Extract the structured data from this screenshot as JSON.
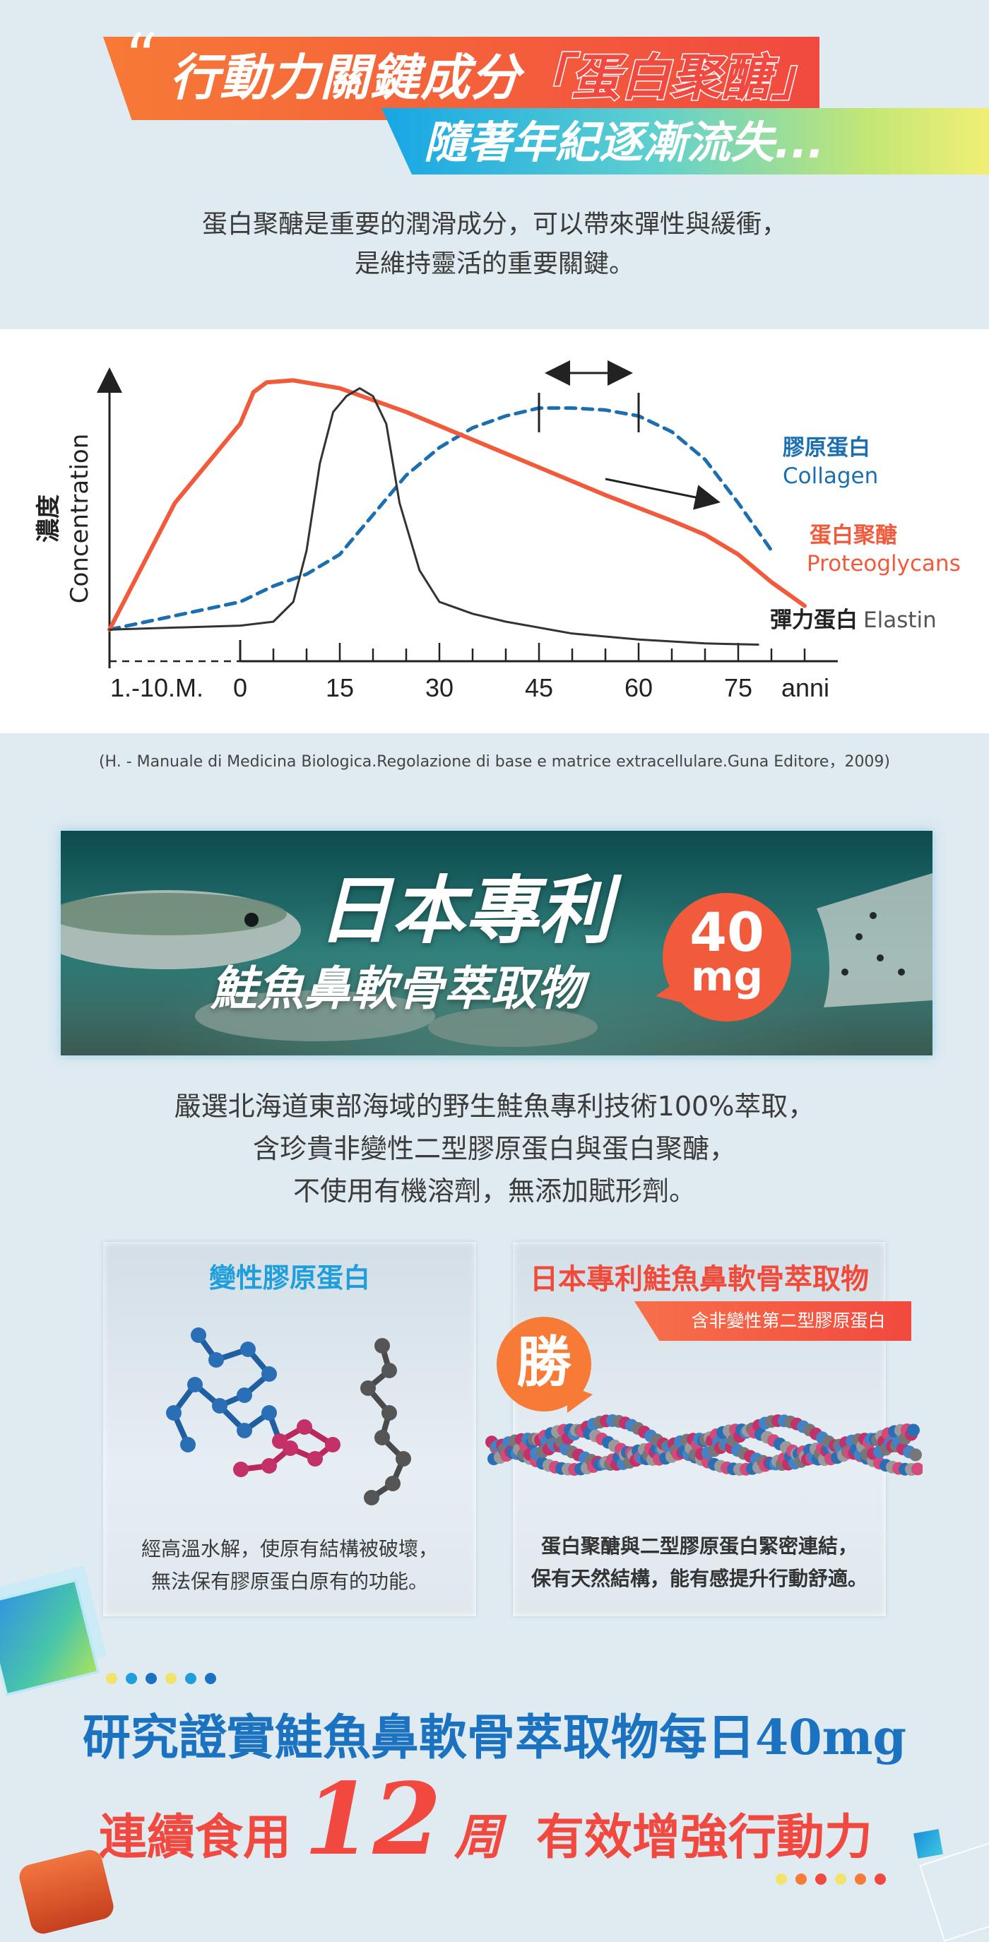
{
  "headline": {
    "line1_prefix": "行動力關鍵成分",
    "line1_highlight": "「蛋白聚醣」",
    "line2": "隨著年紀逐漸流失...",
    "intro_line1": "蛋白聚醣是重要的潤滑成分，可以帶來彈性與緩衝，",
    "intro_line2": "是維持靈活的重要關鍵。"
  },
  "chart_data": {
    "type": "line",
    "ylabel_zh": "濃度",
    "ylabel_en": "Concentration",
    "x_tick_labels": [
      "1.-10.M.",
      "0",
      "15",
      "30",
      "45",
      "60",
      "75",
      "anni"
    ],
    "series": [
      {
        "name": "膠原蛋白 Collagen",
        "label_zh": "膠原蛋白",
        "label_en": "Collagen",
        "color": "#1b6fb0",
        "style": "dashed",
        "x": [
          -2,
          0,
          5,
          10,
          15,
          20,
          25,
          30,
          35,
          40,
          45,
          50,
          55,
          60,
          65,
          70,
          75,
          80
        ],
        "y": [
          8,
          15,
          19,
          22,
          27,
          37,
          47,
          54,
          59,
          62,
          64,
          64,
          63.5,
          62,
          58,
          51,
          40,
          28
        ]
      },
      {
        "name": "蛋白聚醣 Proteoglycans",
        "label_zh": "蛋白聚醣",
        "label_en": "Proteoglycans",
        "color": "#f25a3c",
        "style": "solid",
        "x": [
          -2,
          -1,
          0,
          2,
          4,
          8,
          15,
          25,
          35,
          45,
          55,
          65,
          70,
          75,
          80,
          85
        ],
        "y": [
          8,
          40,
          60,
          68,
          70.5,
          71,
          69,
          63,
          56,
          49,
          42,
          35.5,
          32,
          27,
          20,
          14
        ]
      },
      {
        "name": "彈力蛋白 Elastin",
        "label_zh": "彈力蛋白",
        "label_en": "Elastin",
        "color": "#333333",
        "style": "solid",
        "x": [
          -2,
          0,
          5,
          8,
          10,
          12,
          14,
          16,
          18,
          20,
          22,
          24,
          27,
          30,
          35,
          40,
          50,
          60,
          70,
          78
        ],
        "y": [
          8,
          9,
          10,
          15,
          28,
          50,
          63,
          67,
          69,
          67,
          60,
          40,
          23,
          15,
          12,
          10,
          7,
          5.5,
          4.5,
          4.2
        ]
      }
    ],
    "annotations": [
      {
        "type": "range-arrow",
        "x_from": 45,
        "x_to": 60,
        "description": "double-headed arrow above collagen plateau"
      },
      {
        "type": "arrow",
        "x_from": 55,
        "x_to": 70,
        "description": "downward-trend arrow near proteoglycans line"
      }
    ],
    "grid": false,
    "legend": "inline-right"
  },
  "citation": "(H. - Manuale di Medicina Biologica.Regolazione di base e matrice extracellulare.Guna Editore，2009)",
  "patent": {
    "title": "日本專利",
    "subtitle": "鮭魚鼻軟骨萃取物",
    "badge_number": "40",
    "badge_unit": "mg"
  },
  "description": {
    "line1": "嚴選北海道東部海域的野生鮭魚專利技術100%萃取，",
    "line2": "含珍貴非變性二型膠原蛋白與蛋白聚醣，",
    "line3": "不使用有機溶劑，無添加賦形劑。"
  },
  "compare": {
    "left": {
      "title": "變性膠原蛋白",
      "text_line1": "經高溫水解，使原有結構被破壞，",
      "text_line2": "無法保有膠原蛋白原有的功能。"
    },
    "right": {
      "title": "日本專利鮭魚鼻軟骨萃取物",
      "ribbon": "含非變性第二型膠原蛋白",
      "badge": "勝",
      "text_line1": "蛋白聚醣與二型膠原蛋白緊密連結，",
      "text_line2": "保有天然結構，能有感提升行動舒適。"
    }
  },
  "bottom": {
    "line1": "研究證實鮭魚鼻軟骨萃取物每日40mg",
    "line2_a": "連續食用",
    "line2_num": "12",
    "line2_c": "周",
    "line2_d": "有效增強行動力"
  },
  "colors": {
    "orange": "#f77a36",
    "red": "#f1493f",
    "blue": "#1b72c0",
    "cyan": "#1e9fdc"
  }
}
